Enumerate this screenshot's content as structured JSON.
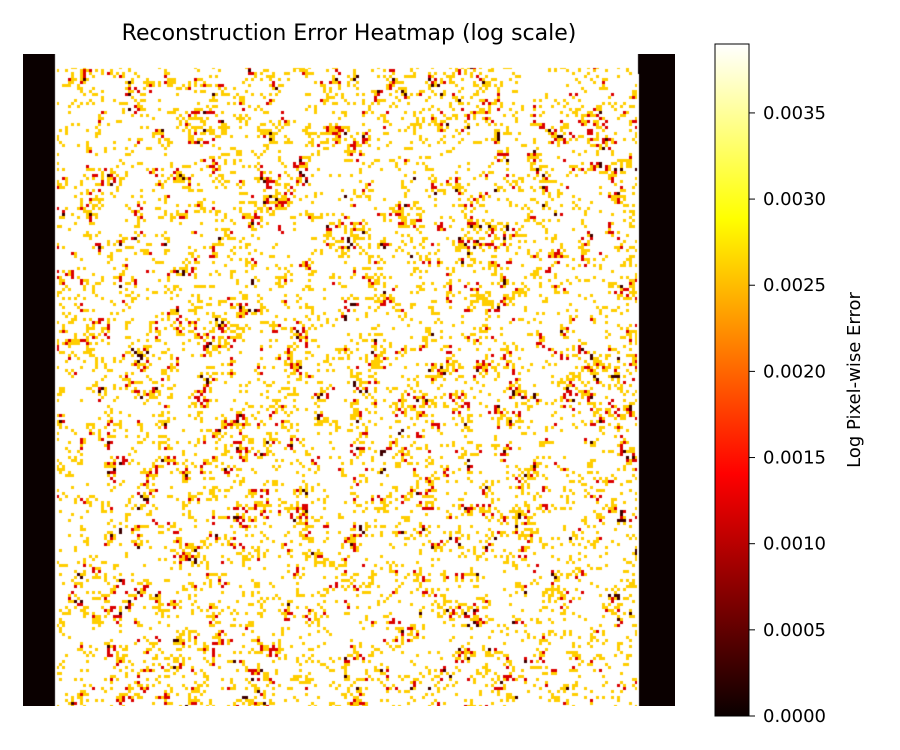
{
  "chart_data": {
    "type": "heatmap",
    "title": "Reconstruction Error Heatmap (log scale)",
    "axes_visible": false,
    "colormap": "hot",
    "colormap_stops": [
      "#0a0000",
      "#ff0000",
      "#ffff00",
      "#ffffff"
    ],
    "grid": false,
    "colorbar": {
      "label": "Log Pixel-wise Error",
      "range": [
        0.0,
        0.0039
      ],
      "position": "right",
      "ticks": [
        {
          "value": 0.0,
          "label": "0.0000"
        },
        {
          "value": 0.0005,
          "label": "0.0005"
        },
        {
          "value": 0.001,
          "label": "0.0010"
        },
        {
          "value": 0.0015,
          "label": "0.0015"
        },
        {
          "value": 0.002,
          "label": "0.0020"
        },
        {
          "value": 0.0025,
          "label": "0.0025"
        },
        {
          "value": 0.003,
          "label": "0.0030"
        },
        {
          "value": 0.0035,
          "label": "0.0035"
        }
      ]
    },
    "value_distribution": {
      "background_value": 0.0039,
      "common_value": 0.0026,
      "hotspot_value": 0.0012,
      "dark_value": 0.0003,
      "edge_columns_value": 0.0
    }
  }
}
